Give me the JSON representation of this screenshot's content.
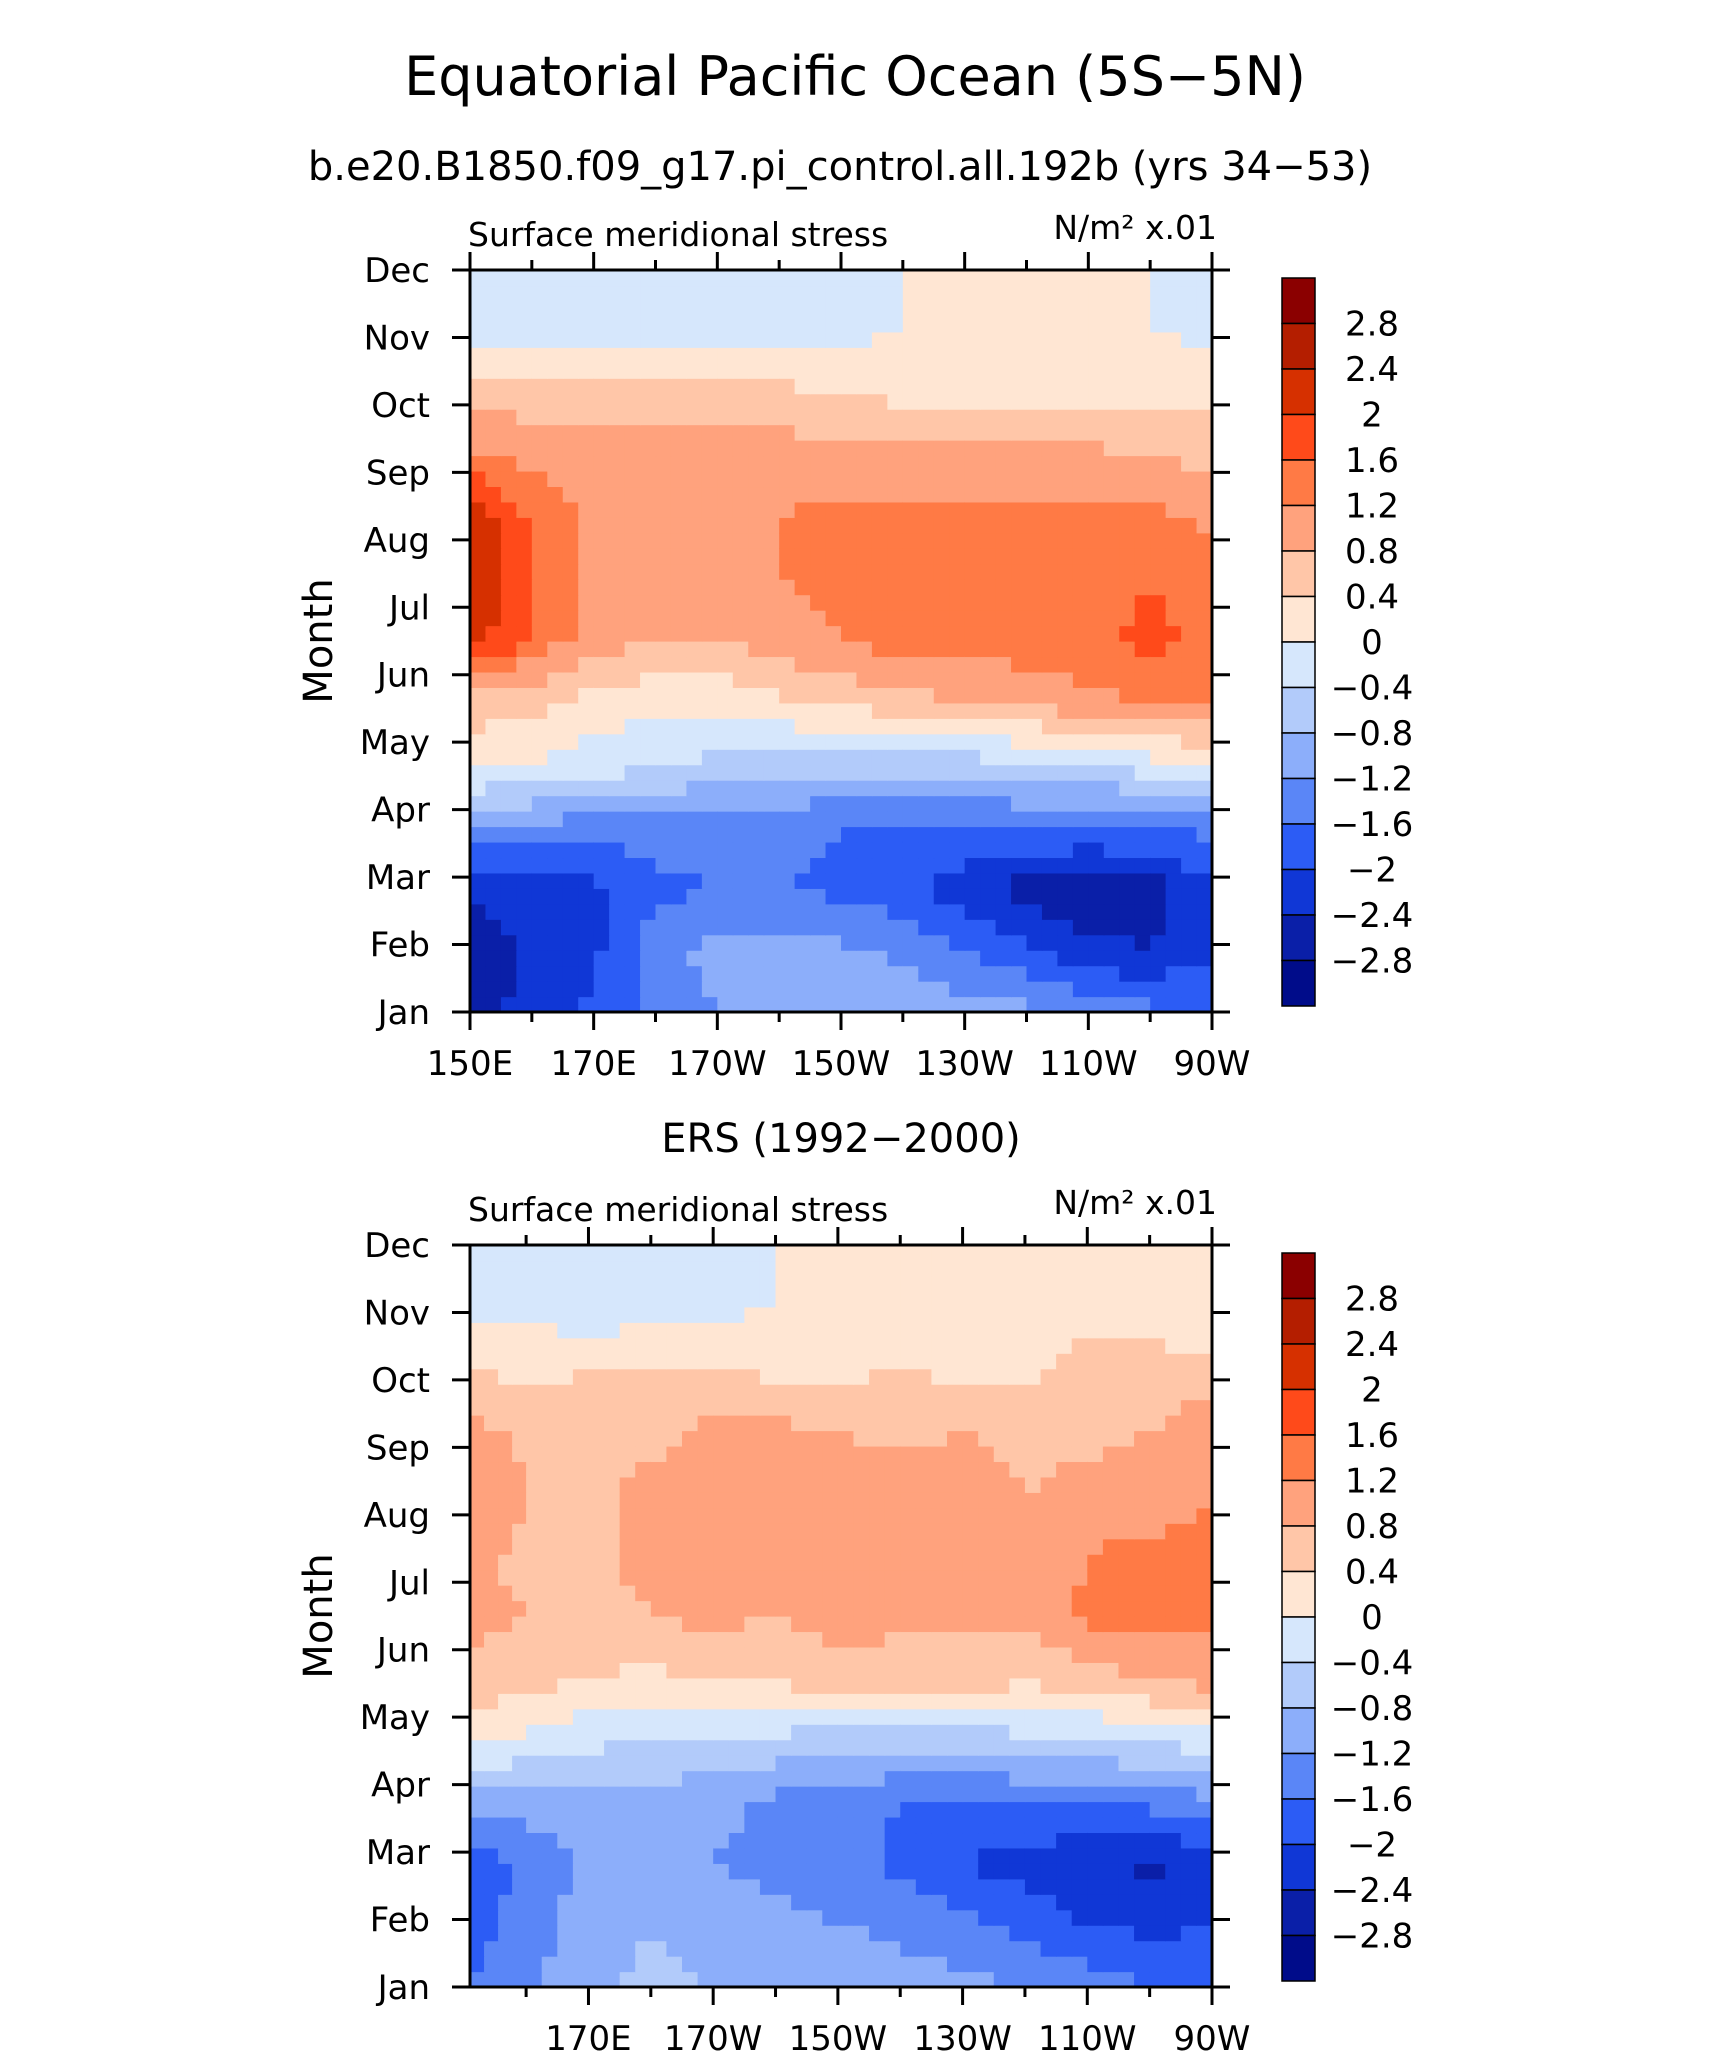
{
  "figure": {
    "title": "Equatorial Pacific Ocean (5S−5N)",
    "subtitle": "b.e20.B1850.f09_g17.pi_control.all.192b (yrs 34−53)"
  },
  "colorbar": {
    "levels": [
      "2.8",
      "2.4",
      "2",
      "1.6",
      "1.2",
      "0.8",
      "0.4",
      "0",
      "−0.4",
      "−0.8",
      "−1.2",
      "−1.6",
      "−2",
      "−2.4",
      "−2.8"
    ],
    "colors": [
      "#8b0000",
      "#b41e00",
      "#d63000",
      "#ff4a1a",
      "#ff7a45",
      "#ffa27d",
      "#ffc6a8",
      "#ffe6d3",
      "#d6e7fc",
      "#b2cbfa",
      "#8caefa",
      "#5a86f7",
      "#2c5cf5",
      "#1037d6",
      "#0a1fa8",
      "#000c8a"
    ]
  },
  "chart_data": [
    {
      "type": "heatmap",
      "title": "",
      "left_string": "Surface meridional stress",
      "right_string": "N/m² x.01",
      "ylabel": "Month",
      "x_ticklabels": [
        "150E",
        "170E",
        "170W",
        "150W",
        "130W",
        "110W",
        "90W"
      ],
      "y_ticklabels": [
        "Jan",
        "Feb",
        "Mar",
        "Apr",
        "May",
        "Jun",
        "Jul",
        "Aug",
        "Sep",
        "Oct",
        "Nov",
        "Dec"
      ],
      "xlim_lon_east": [
        150,
        270
      ],
      "x": [
        150,
        160,
        170,
        180,
        190,
        200,
        210,
        220,
        230,
        240,
        250,
        260,
        270
      ],
      "z_months_by_lon": [
        [
          -2.6,
          -2.2,
          -1.9,
          -1.5,
          -1.2,
          -1.0,
          -0.9,
          -0.9,
          -1.0,
          -1.1,
          -1.3,
          -1.5,
          -1.7
        ],
        [
          -2.9,
          -2.3,
          -2.1,
          -1.3,
          -1.1,
          -1.0,
          -1.1,
          -1.3,
          -1.6,
          -1.9,
          -2.3,
          -2.4,
          -2.0
        ],
        [
          -2.3,
          -2.1,
          -2.1,
          -1.7,
          -1.6,
          -1.6,
          -1.7,
          -1.9,
          -2.2,
          -2.6,
          -2.7,
          -2.6,
          -2.0
        ],
        [
          -1.2,
          -1.3,
          -1.4,
          -1.4,
          -1.5,
          -1.5,
          -1.6,
          -1.6,
          -1.6,
          -1.6,
          -1.6,
          -1.6,
          -1.5
        ],
        [
          0.1,
          0.0,
          -0.2,
          -0.3,
          -0.5,
          -0.6,
          -0.6,
          -0.6,
          -0.6,
          -0.5,
          -0.4,
          -0.2,
          0.1
        ],
        [
          0.6,
          0.5,
          0.2,
          0.1,
          0.1,
          0.3,
          0.5,
          0.6,
          0.8,
          0.9,
          1.1,
          1.2,
          1.2
        ],
        [
          2.2,
          1.5,
          1.0,
          0.8,
          0.8,
          1.0,
          1.2,
          1.4,
          1.4,
          1.4,
          1.5,
          1.7,
          1.5
        ],
        [
          2.5,
          1.6,
          1.1,
          1.1,
          1.1,
          1.2,
          1.3,
          1.3,
          1.3,
          1.3,
          1.4,
          1.6,
          1.3
        ],
        [
          2.3,
          1.5,
          1.1,
          1.1,
          1.1,
          1.2,
          1.3,
          1.3,
          1.3,
          1.3,
          1.3,
          1.3,
          1.1
        ],
        [
          1.3,
          1.1,
          1.0,
          1.0,
          1.0,
          1.0,
          0.9,
          0.9,
          0.9,
          0.9,
          0.9,
          0.8,
          0.7
        ],
        [
          0.6,
          0.6,
          0.6,
          0.6,
          0.6,
          0.5,
          0.4,
          0.3,
          0.3,
          0.3,
          0.3,
          0.3,
          0.3
        ],
        [
          -0.3,
          -0.2,
          -0.2,
          -0.2,
          -0.2,
          -0.2,
          -0.1,
          0.0,
          0.1,
          0.2,
          0.1,
          0.0,
          -0.1
        ]
      ]
    },
    {
      "type": "heatmap",
      "title": "ERS (1992−2000)",
      "left_string": "Surface meridional stress",
      "right_string": "N/m² x.01",
      "ylabel": "Month",
      "x_ticklabels": [
        "170E",
        "170W",
        "150W",
        "130W",
        "110W",
        "90W"
      ],
      "y_ticklabels": [
        "Jan",
        "Feb",
        "Mar",
        "Apr",
        "May",
        "Jun",
        "Jul",
        "Aug",
        "Sep",
        "Oct",
        "Nov",
        "Dec"
      ],
      "xlim_lon_east": [
        151,
        270
      ],
      "x": [
        151,
        160,
        170,
        180,
        190,
        200,
        210,
        220,
        230,
        240,
        250,
        260,
        270
      ],
      "z_months_by_lon": [
        [
          -1.6,
          -1.3,
          -0.9,
          -0.7,
          -0.8,
          -0.9,
          -0.9,
          -1.0,
          -1.1,
          -1.2,
          -1.4,
          -1.6,
          -1.8
        ],
        [
          -1.8,
          -1.4,
          -1.0,
          -0.8,
          -1.0,
          -1.1,
          -1.2,
          -1.3,
          -1.5,
          -1.7,
          -2.0,
          -2.1,
          -2.0
        ],
        [
          -1.9,
          -1.5,
          -1.1,
          -0.9,
          -1.2,
          -1.3,
          -1.4,
          -1.7,
          -2.0,
          -2.2,
          -2.3,
          -2.5,
          -2.2
        ],
        [
          -1.0,
          -1.0,
          -0.9,
          -0.9,
          -1.1,
          -1.3,
          -1.4,
          -1.6,
          -1.6,
          -1.6,
          -1.6,
          -1.5,
          -1.3
        ],
        [
          0.1,
          -0.1,
          -0.3,
          -0.4,
          -0.5,
          -0.5,
          -0.6,
          -0.6,
          -0.6,
          -0.5,
          -0.4,
          -0.3,
          -0.2
        ],
        [
          0.7,
          0.6,
          0.4,
          0.3,
          0.4,
          0.5,
          0.6,
          0.6,
          0.6,
          0.5,
          0.6,
          0.8,
          1.0
        ],
        [
          0.9,
          0.8,
          0.7,
          0.8,
          0.9,
          0.8,
          1.0,
          0.9,
          0.9,
          0.9,
          1.3,
          1.4,
          1.3
        ],
        [
          0.9,
          0.7,
          0.7,
          0.9,
          1.0,
          1.0,
          1.0,
          1.0,
          1.0,
          0.9,
          1.2,
          1.3,
          1.3
        ],
        [
          1.3,
          0.8,
          0.7,
          0.9,
          1.0,
          0.9,
          1.0,
          1.0,
          1.0,
          0.8,
          0.9,
          1.0,
          1.2
        ],
        [
          0.9,
          0.7,
          0.6,
          0.7,
          0.9,
          0.9,
          0.8,
          0.7,
          0.8,
          0.7,
          0.7,
          0.8,
          1.0
        ],
        [
          0.4,
          0.3,
          0.4,
          0.4,
          0.4,
          0.3,
          0.3,
          0.4,
          0.3,
          0.3,
          0.6,
          0.6,
          0.6
        ],
        [
          -0.2,
          -0.1,
          -0.3,
          -0.2,
          -0.1,
          0.0,
          0.1,
          0.2,
          0.2,
          0.1,
          0.2,
          0.1,
          0.0
        ]
      ]
    }
  ]
}
